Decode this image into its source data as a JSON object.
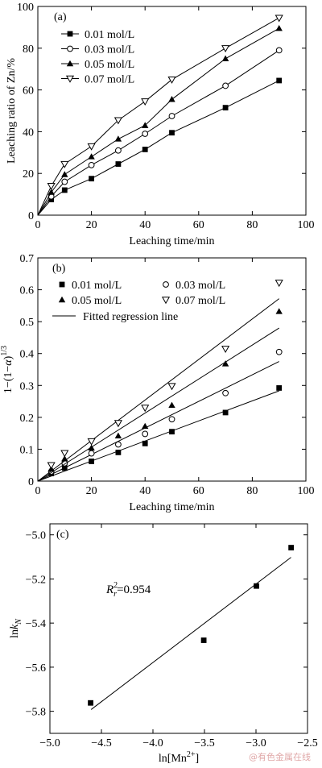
{
  "watermark": "@有色金属在线",
  "chart_data": [
    {
      "panel": "(a)",
      "type": "line",
      "xlabel": "Leaching time/min",
      "ylabel": "Leaching ratio of Zn/%",
      "xlim": [
        0,
        100
      ],
      "ylim": [
        0,
        100
      ],
      "xticks": [
        0,
        20,
        40,
        60,
        80,
        100
      ],
      "yticks": [
        0,
        20,
        40,
        60,
        80,
        100
      ],
      "legend": "top-left",
      "series": [
        {
          "name": "0.01 mol/L",
          "marker": "square-filled",
          "points": [
            [
              0,
              0
            ],
            [
              5,
              7.5
            ],
            [
              10,
              12
            ],
            [
              20,
              17.5
            ],
            [
              30,
              24.5
            ],
            [
              40,
              31.5
            ],
            [
              50,
              39.5
            ],
            [
              70,
              51.5
            ],
            [
              90,
              64.5
            ]
          ]
        },
        {
          "name": "0.03 mol/L",
          "marker": "circle-open",
          "points": [
            [
              0,
              0
            ],
            [
              5,
              9
            ],
            [
              10,
              16
            ],
            [
              20,
              24
            ],
            [
              30,
              31
            ],
            [
              40,
              39
            ],
            [
              50,
              47.5
            ],
            [
              70,
              62
            ],
            [
              90,
              79
            ]
          ]
        },
        {
          "name": "0.05 mol/L",
          "marker": "triangle-up-filled",
          "points": [
            [
              0,
              0
            ],
            [
              5,
              11
            ],
            [
              10,
              19.5
            ],
            [
              20,
              28
            ],
            [
              30,
              36.5
            ],
            [
              40,
              43
            ],
            [
              50,
              55.5
            ],
            [
              70,
              75
            ],
            [
              90,
              89.5
            ]
          ]
        },
        {
          "name": "0.07 mol/L",
          "marker": "triangle-down-open",
          "points": [
            [
              0,
              0
            ],
            [
              5,
              14
            ],
            [
              10,
              24.5
            ],
            [
              20,
              33
            ],
            [
              30,
              45.5
            ],
            [
              40,
              54.5
            ],
            [
              50,
              65
            ],
            [
              70,
              80
            ],
            [
              90,
              94.5
            ]
          ]
        }
      ]
    },
    {
      "panel": "(b)",
      "type": "scatter",
      "xlabel": "Leaching time/min",
      "ylabel": "1−(1−α)^1/3",
      "ylabel_parts": {
        "main": "1−(1−",
        "alpha": "α",
        "close": ")",
        "exp": "1/3"
      },
      "xlim": [
        0,
        100
      ],
      "ylim": [
        0,
        0.7
      ],
      "xticks": [
        0,
        20,
        40,
        60,
        80,
        100
      ],
      "yticks": [
        0.1,
        0.2,
        0.3,
        0.4,
        0.5,
        0.6,
        0.7
      ],
      "legend": "top-left",
      "fit_label": "Fitted regression line",
      "series": [
        {
          "name": "0.01 mol/L",
          "marker": "square-filled",
          "points": [
            [
              5,
              0.024
            ],
            [
              10,
              0.041
            ],
            [
              20,
              0.062
            ],
            [
              30,
              0.09
            ],
            [
              40,
              0.118
            ],
            [
              50,
              0.155
            ],
            [
              70,
              0.215
            ],
            [
              90,
              0.292
            ]
          ],
          "fit": [
            [
              0,
              0
            ],
            [
              90,
              0.283
            ]
          ]
        },
        {
          "name": "0.03 mol/L",
          "marker": "circle-open",
          "points": [
            [
              5,
              0.03
            ],
            [
              10,
              0.056
            ],
            [
              20,
              0.087
            ],
            [
              30,
              0.115
            ],
            [
              40,
              0.148
            ],
            [
              50,
              0.194
            ],
            [
              70,
              0.276
            ],
            [
              90,
              0.405
            ]
          ],
          "fit": [
            [
              0,
              0
            ],
            [
              90,
              0.375
            ]
          ]
        },
        {
          "name": "0.05 mol/L",
          "marker": "triangle-up-filled",
          "points": [
            [
              5,
              0.038
            ],
            [
              10,
              0.07
            ],
            [
              20,
              0.104
            ],
            [
              30,
              0.142
            ],
            [
              40,
              0.172
            ],
            [
              50,
              0.238
            ],
            [
              70,
              0.368
            ],
            [
              90,
              0.532
            ]
          ],
          "fit": [
            [
              0,
              0
            ],
            [
              90,
              0.48
            ]
          ]
        },
        {
          "name": "0.07 mol/L",
          "marker": "triangle-down-open",
          "points": [
            [
              5,
              0.05
            ],
            [
              10,
              0.088
            ],
            [
              20,
              0.125
            ],
            [
              30,
              0.182
            ],
            [
              40,
              0.23
            ],
            [
              50,
              0.298
            ],
            [
              70,
              0.415
            ],
            [
              90,
              0.622
            ]
          ],
          "fit": [
            [
              0,
              0
            ],
            [
              90,
              0.572
            ]
          ]
        }
      ]
    },
    {
      "panel": "(c)",
      "type": "scatter",
      "xlabel": "ln[Mn²⁺]",
      "xlabel_parts": {
        "main": "ln[Mn",
        "sup": "2+",
        "close": "]"
      },
      "ylabel": "ln kN",
      "ylabel_parts": {
        "main": "ln",
        "k": "k",
        "sub": "N"
      },
      "xlim": [
        -5.0,
        -2.5
      ],
      "ylim": [
        -5.9,
        -4.95
      ],
      "xticks": [
        -5.0,
        -4.5,
        -4.0,
        -3.5,
        -3.0,
        -2.5
      ],
      "yticks": [
        -5.8,
        -5.6,
        -5.4,
        -5.2,
        -5.0
      ],
      "annotation": "R_r^2=0.954",
      "annotation_parts": {
        "R": "R",
        "sub": "r",
        "sup": "2",
        "rest": "=0.954"
      },
      "points": [
        [
          -4.605,
          -5.762
        ],
        [
          -3.507,
          -5.478
        ],
        [
          -2.996,
          -5.232
        ],
        [
          -2.659,
          -5.058
        ]
      ],
      "fit": [
        [
          -4.6,
          -5.792
        ],
        [
          -2.66,
          -5.102
        ]
      ]
    }
  ]
}
